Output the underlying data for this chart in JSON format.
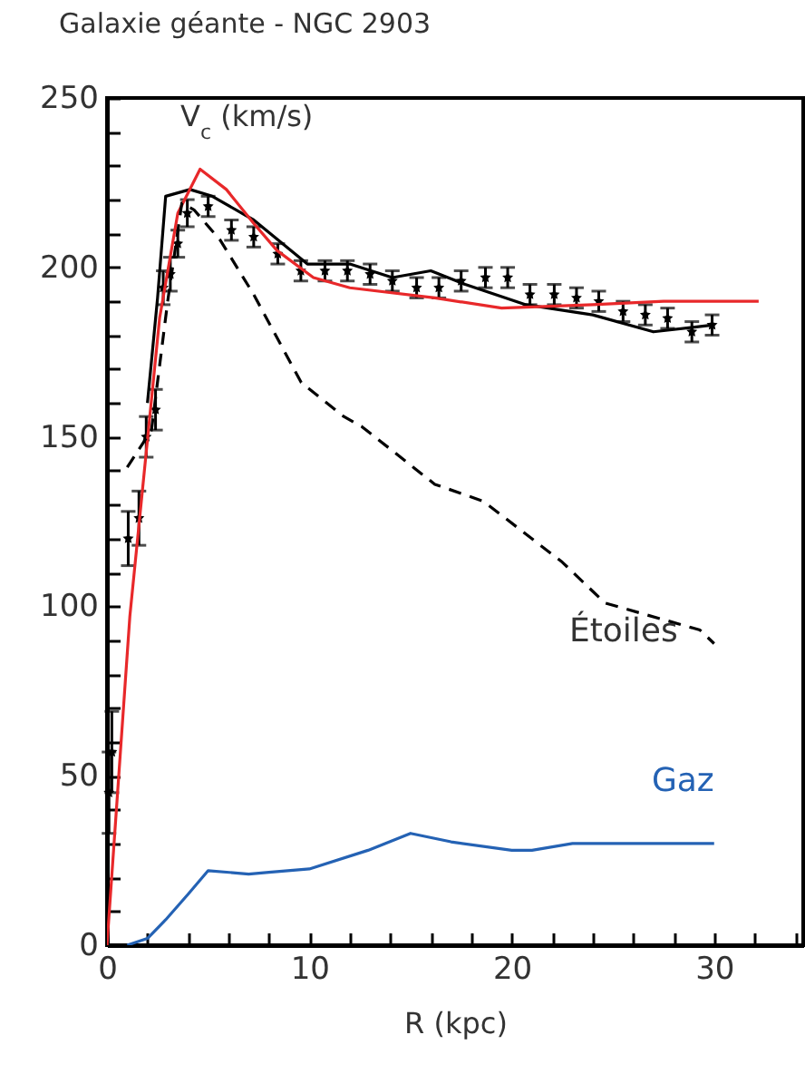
{
  "chart_data": {
    "type": "line",
    "title": "Galaxie géante - NGC 2903",
    "xlabel": "R (kpc)",
    "ylabel": "V$_{c}$ (km/s)",
    "xlim": [
      0,
      34.4
    ],
    "ylim": [
      0,
      250
    ],
    "xticks": [
      0,
      {
        "value": 2,
        "label": null
      },
      {
        "value": 4,
        "label": null
      },
      {
        "value": 6,
        "label": null
      },
      {
        "value": 8,
        "label": null
      },
      10,
      {
        "value": 12,
        "label": null
      },
      {
        "value": 14,
        "label": null
      },
      {
        "value": 16,
        "label": null
      },
      {
        "value": 18,
        "label": null
      },
      20,
      {
        "value": 22,
        "label": null
      },
      {
        "value": 24,
        "label": null
      },
      {
        "value": 26,
        "label": null
      },
      {
        "value": 28,
        "label": null
      },
      30,
      {
        "value": 32,
        "label": null
      },
      {
        "value": 34,
        "label": null
      }
    ],
    "yticks": [
      0,
      {
        "value": 10,
        "label": null
      },
      {
        "value": 20,
        "label": null
      },
      {
        "value": 30,
        "label": null
      },
      {
        "value": 40,
        "label": null
      },
      50,
      {
        "value": 60,
        "label": null
      },
      {
        "value": 70,
        "label": null
      },
      {
        "value": 80,
        "label": null
      },
      {
        "value": 90,
        "label": null
      },
      100,
      {
        "value": 110,
        "label": null
      },
      {
        "value": 120,
        "label": null
      },
      {
        "value": 130,
        "label": null
      },
      {
        "value": 140,
        "label": null
      },
      150,
      {
        "value": 160,
        "label": null
      },
      {
        "value": 170,
        "label": null
      },
      {
        "value": 180,
        "label": null
      },
      {
        "value": 190,
        "label": null
      },
      200,
      {
        "value": 210,
        "label": null
      },
      {
        "value": 220,
        "label": null
      },
      {
        "value": 230,
        "label": null
      },
      {
        "value": 240,
        "label": null
      },
      250
    ],
    "series": [
      {
        "type": "scatter",
        "color": "#000000",
        "marker": "star",
        "x": [
          0.1,
          0.24,
          1.05,
          1.58,
          1.94,
          2.4,
          2.78,
          3.13,
          3.5,
          3.97,
          5.0,
          6.15,
          7.25,
          8.44,
          9.58,
          10.77,
          11.88,
          13.0,
          14.1,
          15.3,
          16.4,
          17.5,
          18.7,
          19.8,
          20.9,
          22.1,
          23.2,
          24.3,
          25.5,
          26.6,
          27.7,
          28.9,
          29.9
        ],
        "values": [
          45,
          57,
          120,
          126,
          150,
          158,
          194,
          198,
          207,
          216,
          218,
          211,
          209,
          204,
          199,
          199,
          199,
          198,
          196,
          194,
          194,
          196,
          197,
          197,
          192,
          192,
          191,
          190,
          187,
          186,
          185,
          181,
          183
        ],
        "errors": [
          12,
          12,
          8,
          8,
          6,
          6,
          5,
          5,
          4,
          4,
          3,
          3,
          3,
          3,
          3,
          3,
          3,
          3,
          3,
          3,
          3,
          3,
          3,
          3,
          3,
          3,
          3,
          3,
          3,
          3,
          3,
          3,
          3
        ]
      },
      {
        "type": "line",
        "color": "#000000",
        "x": [
          2.0,
          2.5,
          2.9,
          4.1,
          5.2,
          7.25,
          9.9,
          12,
          14.1,
          16,
          17.7,
          20.7,
          24,
          27,
          29.9
        ],
        "values": [
          160,
          191,
          221,
          223,
          221,
          214,
          201,
          201,
          197,
          199,
          195,
          189,
          186,
          181,
          183
        ]
      },
      {
        "type": "line",
        "color": "#e8282a",
        "x": [
          0,
          1.13,
          2.6,
          3.5,
          4.6,
          5.9,
          7.25,
          8.4,
          10.2,
          12,
          16.2,
          19.5,
          24,
          27.5,
          32.2
        ],
        "values": [
          0,
          97,
          185,
          216,
          229,
          223,
          213,
          205,
          197,
          194,
          191,
          188,
          189,
          190,
          190
        ]
      },
      {
        "type": "line",
        "name": "Étoiles",
        "color": "#000000",
        "line_style": "dashed",
        "x": [
          1.0,
          2.2,
          3.0,
          3.7,
          4.3,
          5.6,
          7.25,
          9.6,
          11.7,
          12.6,
          16.2,
          18.6,
          22.5,
          24.6,
          29.3,
          30
        ],
        "values": [
          141,
          152,
          190,
          219,
          217,
          208,
          192,
          166,
          156,
          153,
          136,
          131,
          113,
          101,
          93,
          89
        ]
      },
      {
        "type": "line",
        "name": "Gaz",
        "color": "#2462b4",
        "x": [
          1,
          2,
          2.9,
          4,
          5,
          7,
          8,
          10,
          12.9,
          15,
          17,
          20,
          21,
          23,
          30
        ],
        "values": [
          0,
          2,
          7.5,
          15,
          22,
          21,
          21.5,
          22.5,
          28,
          33,
          30.5,
          28,
          28,
          30,
          30
        ]
      }
    ]
  }
}
